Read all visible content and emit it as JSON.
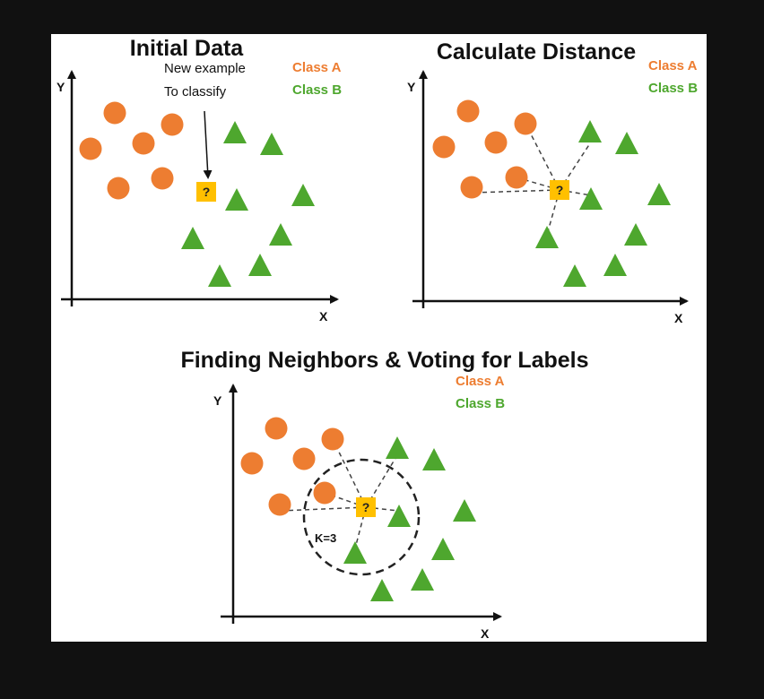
{
  "colors": {
    "background": "#111111",
    "panel": "#ffffff",
    "class_a": "#ed7d31",
    "class_b": "#4ea72e",
    "unknown": "#ffc000",
    "axis": "#111111"
  },
  "panels": [
    {
      "id": "initial",
      "title": "Initial Data",
      "y_axis_label": "Y",
      "x_axis_label": "X",
      "legend": {
        "class_a": "Class A",
        "class_b": "Class B"
      },
      "annotation": {
        "line1": "New example",
        "line2": "To classify"
      },
      "unknown_label": "?"
    },
    {
      "id": "distance",
      "title": "Calculate Distance",
      "y_axis_label": "Y",
      "x_axis_label": "X",
      "legend": {
        "class_a": "Class A",
        "class_b": "Class B"
      },
      "unknown_label": "?"
    },
    {
      "id": "neighbors",
      "title": "Finding Neighbors & Voting for Labels",
      "y_axis_label": "Y",
      "x_axis_label": "X",
      "legend": {
        "class_a": "Class A",
        "class_b": "Class B"
      },
      "unknown_label": "?",
      "k_label": "K=3"
    }
  ]
}
